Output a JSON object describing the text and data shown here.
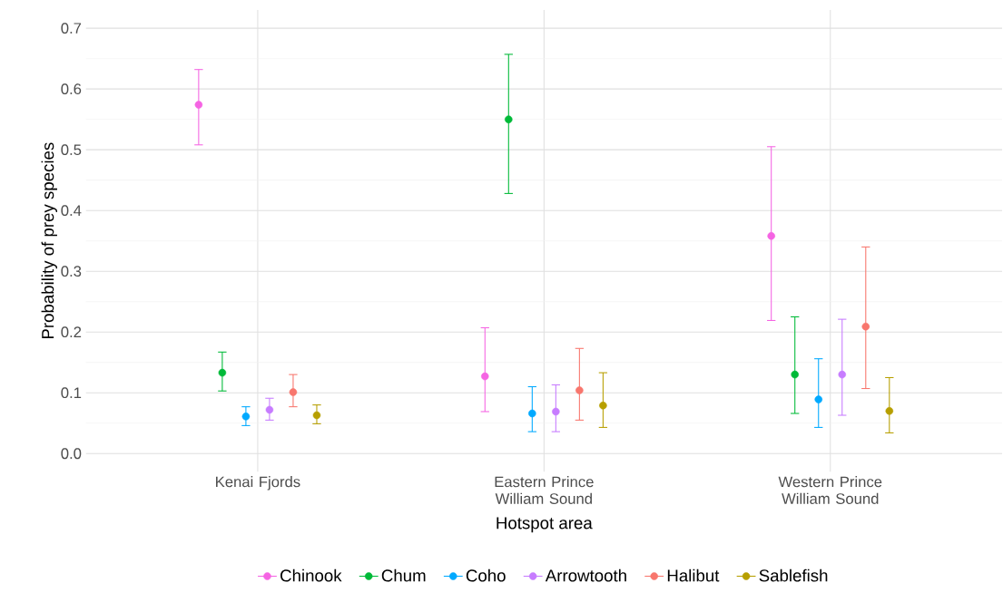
{
  "chart_data": {
    "type": "scatter",
    "xlabel": "Hotspot area",
    "ylabel": "Probability of prey species",
    "categories": [
      "Kenai Fjords",
      "Eastern Prince William Sound",
      "Western Prince William Sound"
    ],
    "series": [
      {
        "name": "Chinook",
        "color": "#f564e3",
        "values": [
          0.574,
          0.127,
          0.358
        ],
        "errors": [
          [
            0.508,
            0.632
          ],
          [
            0.069,
            0.207
          ],
          [
            0.219,
            0.505
          ]
        ]
      },
      {
        "name": "Chum",
        "color": "#00ba38",
        "values": [
          0.133,
          0.55,
          0.13
        ],
        "errors": [
          [
            0.103,
            0.167
          ],
          [
            0.428,
            0.657
          ],
          [
            0.066,
            0.225
          ]
        ]
      },
      {
        "name": "Coho",
        "color": "#00a9ff",
        "values": [
          0.061,
          0.066,
          0.089
        ],
        "errors": [
          [
            0.046,
            0.077
          ],
          [
            0.036,
            0.11
          ],
          [
            0.043,
            0.156
          ]
        ]
      },
      {
        "name": "Arrowtooth",
        "color": "#c77cff",
        "values": [
          0.072,
          0.069,
          0.13
        ],
        "errors": [
          [
            0.055,
            0.091
          ],
          [
            0.036,
            0.113
          ],
          [
            0.063,
            0.221
          ]
        ]
      },
      {
        "name": "Halibut",
        "color": "#f8766d",
        "values": [
          0.101,
          0.104,
          0.209
        ],
        "errors": [
          [
            0.077,
            0.13
          ],
          [
            0.055,
            0.173
          ],
          [
            0.107,
            0.34
          ]
        ]
      },
      {
        "name": "Sablefish",
        "color": "#b79f00",
        "values": [
          0.063,
          0.079,
          0.07
        ],
        "errors": [
          [
            0.049,
            0.08
          ],
          [
            0.043,
            0.133
          ],
          [
            0.034,
            0.125
          ]
        ]
      }
    ],
    "ylim": [
      -0.03,
      0.73
    ],
    "yticks": [
      {
        "value": 0,
        "label": "0.0"
      },
      0.1,
      0.2,
      0.3,
      0.4,
      0.5,
      0.6,
      0.7
    ],
    "grid": true,
    "legend": "bottom",
    "marker": "circle"
  }
}
